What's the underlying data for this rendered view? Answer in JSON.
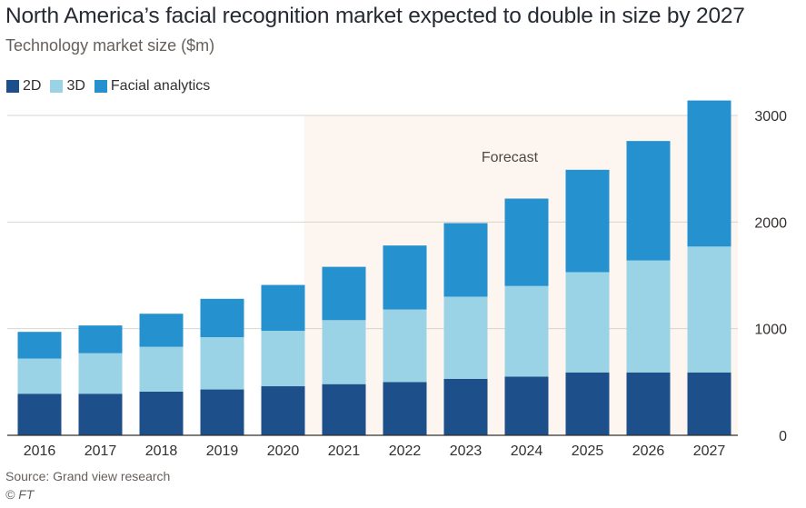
{
  "title": "North America’s facial recognition market expected to double in size by 2027",
  "subtitle": "Technology market size ($m)",
  "source": "Source: Grand view research",
  "credit": "© FT",
  "colors": {
    "2D": "#1d4f8a",
    "3D": "#9bd3e6",
    "Facial analytics": "#2591cf",
    "forecast_shade": "#fdf5ef",
    "grid": "#d9d4cf",
    "axis": "#33302e"
  },
  "chart_data": {
    "type": "bar",
    "stacked": true,
    "categories": [
      "2016",
      "2017",
      "2018",
      "2019",
      "2020",
      "2021",
      "2022",
      "2023",
      "2024",
      "2025",
      "2026",
      "2027"
    ],
    "series": [
      {
        "name": "2D",
        "values": [
          390,
          390,
          410,
          430,
          460,
          480,
          500,
          530,
          550,
          590,
          590,
          590
        ]
      },
      {
        "name": "3D",
        "values": [
          330,
          380,
          420,
          490,
          520,
          600,
          680,
          770,
          850,
          940,
          1050,
          1180
        ]
      },
      {
        "name": "Facial analytics",
        "values": [
          250,
          260,
          310,
          360,
          430,
          500,
          600,
          690,
          820,
          960,
          1120,
          1370
        ]
      }
    ],
    "ylim": [
      0,
      3000
    ],
    "yticks": [
      0,
      1000,
      2000,
      3000
    ],
    "grid": true,
    "legend_position": "top-left",
    "annotation": "Forecast",
    "forecast_start": "2021"
  }
}
